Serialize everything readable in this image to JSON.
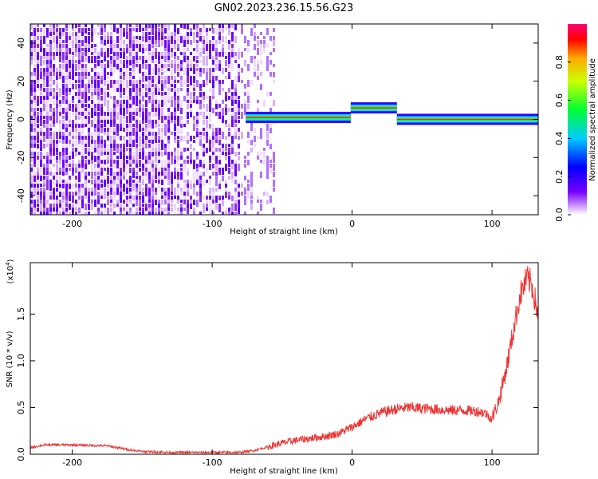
{
  "title": "GN02.2023.236.15.56.G23",
  "chart_data": [
    {
      "type": "heatmap",
      "title": "GN02.2023.236.15.56.G23",
      "xlabel": "Height of straight line (km)",
      "ylabel": "Frequency (Hz)",
      "xlim": [
        -230,
        133
      ],
      "ylim": [
        -50,
        50
      ],
      "xticks": [
        "-200",
        "-100",
        "0",
        "100"
      ],
      "yticks": [
        "-40",
        "-20",
        "0",
        "20",
        "40"
      ],
      "noise_region_x": [
        -230,
        -55
      ],
      "signal_track": [
        {
          "x_start": -76,
          "x_end": -1,
          "frequency": 1
        },
        {
          "x_start": -1,
          "x_end": 32,
          "frequency": 6
        },
        {
          "x_start": 32,
          "x_end": 133,
          "frequency": 0
        }
      ],
      "colorbar": {
        "label": "Normalized spectral amplitude",
        "range": [
          0,
          1
        ],
        "ticks": [
          "0.0",
          "0.2",
          "0.4",
          "0.6",
          "0.8"
        ],
        "colormap": "rainbow (white-violet-blue-cyan-green-yellow-red-magenta)"
      },
      "grid": false
    },
    {
      "type": "line",
      "xlabel": "Height of straight line (km)",
      "ylabel": "SNR (10 * v/v)",
      "multiplier": "(x10",
      "multiplier_exp": "4",
      "multiplier_close": ")",
      "xlim": [
        -230,
        133
      ],
      "ylim": [
        0,
        2.05
      ],
      "xticks": [
        "-200",
        "-100",
        "0",
        "100"
      ],
      "yticks": [
        "0.0",
        "0.5",
        "1.0",
        "1.5"
      ],
      "series": [
        {
          "color": "#ee3333",
          "x": [
            -230,
            -220,
            -200,
            -175,
            -160,
            -150,
            -130,
            -100,
            -80,
            -70,
            -60,
            -50,
            -40,
            -30,
            -20,
            -10,
            0,
            10,
            20,
            30,
            40,
            50,
            60,
            70,
            80,
            90,
            95,
            100,
            105,
            110,
            115,
            120,
            125,
            128,
            130,
            133
          ],
          "y": [
            0.07,
            0.1,
            0.1,
            0.09,
            0.05,
            0.03,
            0.02,
            0.02,
            0.02,
            0.04,
            0.08,
            0.12,
            0.15,
            0.17,
            0.19,
            0.22,
            0.29,
            0.38,
            0.44,
            0.48,
            0.5,
            0.49,
            0.48,
            0.47,
            0.47,
            0.46,
            0.44,
            0.38,
            0.58,
            0.9,
            1.3,
            1.7,
            1.88,
            1.83,
            1.7,
            1.5
          ]
        }
      ],
      "grid": false
    }
  ]
}
